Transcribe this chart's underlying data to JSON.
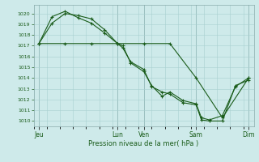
{
  "bg_color": "#ceeaea",
  "grid_color": "#a8d0d0",
  "line_color": "#1a5c1a",
  "title": "Pression niveau de la mer( hPa )",
  "ylim": [
    1009.5,
    1020.8
  ],
  "yticks": [
    1010,
    1011,
    1012,
    1013,
    1014,
    1015,
    1016,
    1017,
    1018,
    1019,
    1020
  ],
  "x_day_labels": [
    "Jeu",
    "Lun",
    "Ven",
    "Sam",
    "Dim"
  ],
  "x_day_positions": [
    0,
    30,
    40,
    60,
    80
  ],
  "xlim": [
    -2,
    82
  ],
  "vline_positions": [
    0,
    30,
    40,
    60,
    80
  ],
  "line1_x": [
    0,
    5,
    10,
    15,
    20,
    25,
    30,
    32,
    35,
    40,
    43,
    47,
    50,
    55,
    60,
    62,
    65,
    70,
    75,
    80
  ],
  "line1_y": [
    1017.2,
    1019.1,
    1020.0,
    1019.8,
    1019.5,
    1018.5,
    1017.2,
    1016.8,
    1015.5,
    1014.8,
    1013.2,
    1012.7,
    1012.5,
    1011.7,
    1011.5,
    1010.1,
    1010.0,
    1010.0,
    1013.3,
    1013.8
  ],
  "line2_x": [
    0,
    5,
    10,
    15,
    20,
    25,
    30,
    32,
    35,
    40,
    43,
    47,
    50,
    55,
    60,
    62,
    65,
    70,
    75,
    80
  ],
  "line2_y": [
    1017.2,
    1019.7,
    1020.2,
    1019.6,
    1019.1,
    1018.2,
    1017.2,
    1017.0,
    1015.4,
    1014.6,
    1013.3,
    1012.3,
    1012.7,
    1011.9,
    1011.6,
    1010.3,
    1010.1,
    1010.5,
    1013.2,
    1014.0
  ],
  "line3_x": [
    0,
    10,
    20,
    30,
    40,
    50,
    60,
    70,
    80
  ],
  "line3_y": [
    1017.2,
    1017.2,
    1017.2,
    1017.2,
    1017.2,
    1017.2,
    1014.0,
    1010.3,
    1014.0
  ]
}
